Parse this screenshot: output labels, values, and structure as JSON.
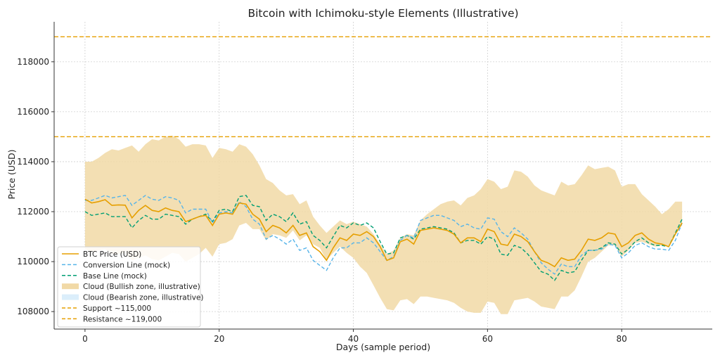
{
  "chart_data": {
    "type": "line",
    "title": "Bitcoin with Ichimoku-style Elements (Illustrative)",
    "xlabel": "Days (sample period)",
    "ylabel": "Price (USD)",
    "xlim": [
      -4.6,
      93.5
    ],
    "ylim": [
      107300,
      119600
    ],
    "xticks": [
      0,
      20,
      40,
      60,
      80
    ],
    "yticks": [
      108000,
      110000,
      112000,
      114000,
      116000,
      118000
    ],
    "grid": true,
    "legend_position": "lower-left",
    "colors": {
      "price": "#e69f00",
      "conversion": "#56b4e9",
      "base": "#009e73",
      "cloud_bull": "#f1d9a6",
      "cloud_bear": "#dbeefb",
      "support": "#e69f00",
      "resistance": "#e69f00"
    },
    "x": [
      0,
      1,
      2,
      3,
      4,
      5,
      6,
      7,
      8,
      9,
      10,
      11,
      12,
      13,
      14,
      15,
      16,
      17,
      18,
      19,
      20,
      21,
      22,
      23,
      24,
      25,
      26,
      27,
      28,
      29,
      30,
      31,
      32,
      33,
      34,
      35,
      36,
      37,
      38,
      39,
      40,
      41,
      42,
      43,
      44,
      45,
      46,
      47,
      48,
      49,
      50,
      51,
      52,
      53,
      54,
      55,
      56,
      57,
      58,
      59,
      60,
      61,
      62,
      63,
      64,
      65,
      66,
      67,
      68,
      69,
      70,
      71,
      72,
      73,
      74,
      75,
      76,
      77,
      78,
      79,
      80,
      81,
      82,
      83,
      84,
      85,
      86,
      87,
      88,
      89
    ],
    "series": [
      {
        "name": "BTC Price (USD)",
        "style": "solid",
        "values": [
          112500,
          112350,
          112400,
          112480,
          112250,
          112270,
          112260,
          111750,
          112050,
          112250,
          112050,
          112000,
          112150,
          112050,
          112000,
          111600,
          111700,
          111800,
          111850,
          111450,
          111900,
          111950,
          111900,
          112350,
          112300,
          111900,
          111700,
          111200,
          111450,
          111350,
          111150,
          111450,
          111050,
          111150,
          110600,
          110400,
          110050,
          110550,
          110950,
          110850,
          111100,
          111050,
          111200,
          111000,
          110600,
          110050,
          110150,
          110800,
          110900,
          110700,
          111250,
          111300,
          111350,
          111300,
          111250,
          111100,
          110750,
          110950,
          110950,
          110800,
          111300,
          111200,
          110700,
          110650,
          111100,
          111000,
          110800,
          110400,
          110050,
          109950,
          109800,
          110150,
          110050,
          110100,
          110450,
          110900,
          110850,
          110950,
          111150,
          111100,
          110600,
          110750,
          111050,
          111150,
          110900,
          110750,
          110700,
          110600,
          111100,
          111550
        ]
      },
      {
        "name": "Conversion Line (mock)",
        "style": "dashed",
        "values": [
          112450,
          112450,
          112550,
          112650,
          112550,
          112600,
          112650,
          112250,
          112450,
          112650,
          112500,
          112450,
          112600,
          112550,
          112450,
          111950,
          112100,
          112100,
          112100,
          111550,
          111950,
          112000,
          111950,
          112400,
          112200,
          111700,
          111500,
          110900,
          111050,
          110900,
          110700,
          110900,
          110450,
          110550,
          110050,
          109850,
          109650,
          110150,
          110550,
          110550,
          110750,
          110750,
          110950,
          110750,
          110400,
          110050,
          110200,
          110850,
          111050,
          110950,
          111650,
          111750,
          111850,
          111850,
          111750,
          111650,
          111400,
          111500,
          111350,
          111300,
          111750,
          111700,
          111200,
          111000,
          111350,
          111150,
          110900,
          110400,
          109950,
          109700,
          109500,
          109900,
          109800,
          109800,
          110250,
          110450,
          110450,
          110500,
          110700,
          110650,
          110150,
          110350,
          110650,
          110750,
          110600,
          110500,
          110500,
          110450,
          110850,
          111550
        ]
      },
      {
        "name": "Base Line (mock)",
        "style": "dashed",
        "values": [
          112000,
          111850,
          111900,
          111950,
          111800,
          111800,
          111800,
          111350,
          111650,
          111850,
          111700,
          111700,
          111900,
          111850,
          111800,
          111500,
          111700,
          111800,
          111900,
          111600,
          112050,
          112100,
          112000,
          112600,
          112650,
          112250,
          112200,
          111650,
          111900,
          111800,
          111600,
          111950,
          111500,
          111600,
          111050,
          110850,
          110550,
          111000,
          111450,
          111350,
          111550,
          111450,
          111550,
          111350,
          110800,
          110300,
          110350,
          110950,
          111050,
          110900,
          111300,
          111350,
          111400,
          111350,
          111300,
          111150,
          110750,
          110850,
          110850,
          110700,
          111000,
          110900,
          110300,
          110250,
          110650,
          110550,
          110300,
          109950,
          109600,
          109500,
          109250,
          109650,
          109550,
          109600,
          110050,
          110450,
          110450,
          110550,
          110750,
          110700,
          110300,
          110500,
          110800,
          110950,
          110750,
          110650,
          110650,
          110600,
          111150,
          111700
        ]
      }
    ],
    "cloud": {
      "upper": [
        114000,
        114000,
        114150,
        114350,
        114500,
        114450,
        114550,
        114650,
        114400,
        114700,
        114900,
        114850,
        115000,
        115050,
        114900,
        114600,
        114700,
        114700,
        114650,
        114150,
        114550,
        114500,
        114400,
        114700,
        114600,
        114300,
        113850,
        113300,
        113150,
        112850,
        112650,
        112700,
        112300,
        112450,
        111800,
        111450,
        111150,
        111400,
        111650,
        111500,
        111600,
        111500,
        111400,
        111100,
        110700,
        110300,
        110450,
        110950,
        111100,
        111050,
        111650,
        111900,
        112100,
        112300,
        112400,
        112450,
        112250,
        112550,
        112650,
        112900,
        113300,
        113200,
        112900,
        113000,
        113650,
        113600,
        113400,
        113050,
        112850,
        112750,
        112650,
        113200,
        113050,
        113100,
        113450,
        113850,
        113700,
        113750,
        113800,
        113650,
        113000,
        113100,
        113100,
        112700,
        112450,
        112200,
        111900,
        112100,
        112400,
        112400
      ],
      "lower": [
        110500,
        110400,
        110450,
        110500,
        110300,
        110300,
        110350,
        110050,
        110150,
        110250,
        110100,
        110050,
        110200,
        110350,
        110300,
        110000,
        110150,
        110300,
        110550,
        110200,
        110700,
        110750,
        110900,
        111450,
        111550,
        111300,
        111300,
        110850,
        111100,
        111050,
        110950,
        111250,
        110850,
        111050,
        110700,
        110550,
        110050,
        110350,
        110600,
        110350,
        110150,
        109800,
        109550,
        109050,
        108550,
        108100,
        108050,
        108450,
        108500,
        108300,
        108600,
        108600,
        108550,
        108500,
        108450,
        108350,
        108150,
        108000,
        107950,
        107950,
        108400,
        108350,
        107900,
        107900,
        108450,
        108500,
        108550,
        108400,
        108200,
        108150,
        108100,
        108600,
        108600,
        108850,
        109400,
        110000,
        110150,
        110400,
        110650,
        110650,
        110200,
        110450,
        110750,
        110800,
        110700,
        110600,
        110650,
        110650,
        111100,
        111450
      ]
    },
    "hlines": [
      {
        "name": "Support ~115,000",
        "value": 115000
      },
      {
        "name": "Resistance ~119,000",
        "value": 119000
      }
    ],
    "legend": [
      {
        "label": "BTC Price (USD)",
        "kind": "line",
        "color": "#e69f00"
      },
      {
        "label": "Conversion Line (mock)",
        "kind": "dash",
        "color": "#56b4e9"
      },
      {
        "label": "Base Line (mock)",
        "kind": "dash",
        "color": "#009e73"
      },
      {
        "label": "Cloud (Bullish zone, illustrative)",
        "kind": "patch",
        "color": "#f1d9a6"
      },
      {
        "label": "Cloud (Bearish zone, illustrative)",
        "kind": "patch",
        "color": "#dbeefb"
      },
      {
        "label": "Support ~115,000",
        "kind": "dash",
        "color": "#e69f00"
      },
      {
        "label": "Resistance ~119,000",
        "kind": "dash",
        "color": "#e69f00"
      }
    ]
  }
}
